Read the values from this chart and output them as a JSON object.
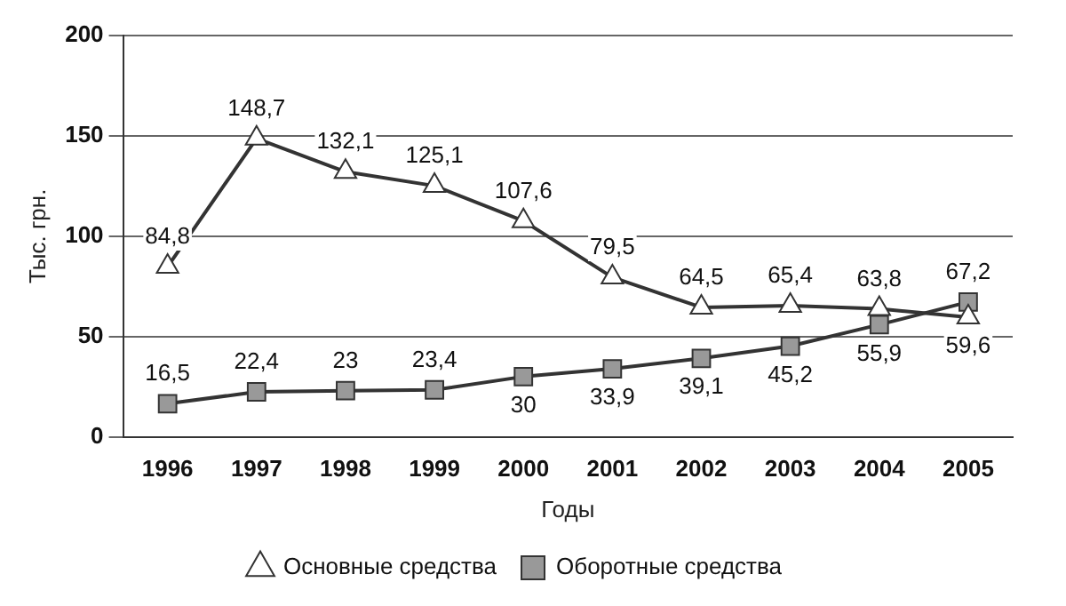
{
  "chart_data": {
    "type": "line",
    "xlabel": "Годы",
    "ylabel": "Тыс. грн.",
    "categories": [
      "1996",
      "1997",
      "1998",
      "1999",
      "2000",
      "2001",
      "2002",
      "2003",
      "2004",
      "2005"
    ],
    "series": [
      {
        "name": "Основные средства",
        "color": "#333333",
        "marker": "triangle",
        "values": [
          84.8,
          148.7,
          132.1,
          125.1,
          107.6,
          79.5,
          64.5,
          65.4,
          63.8,
          59.6
        ],
        "value_labels": [
          "84,8",
          "148,7",
          "132,1",
          "125,1",
          "107,6",
          "79,5",
          "64,5",
          "65,4",
          "63,8",
          "59,6"
        ]
      },
      {
        "name": "Оборотные средства",
        "color": "#333333",
        "marker": "square",
        "values": [
          16.5,
          22.4,
          23,
          23.4,
          30,
          33.9,
          39.1,
          45.2,
          55.9,
          67.2
        ],
        "value_labels": [
          "16,5",
          "22,4",
          "23",
          "23,4",
          "30",
          "33,9",
          "39,1",
          "45,2",
          "55,9",
          "67,2"
        ]
      }
    ],
    "ylim": [
      0,
      200
    ],
    "yticks": [
      0,
      50,
      100,
      150,
      200
    ],
    "grid": "y",
    "legend": "bottom"
  }
}
